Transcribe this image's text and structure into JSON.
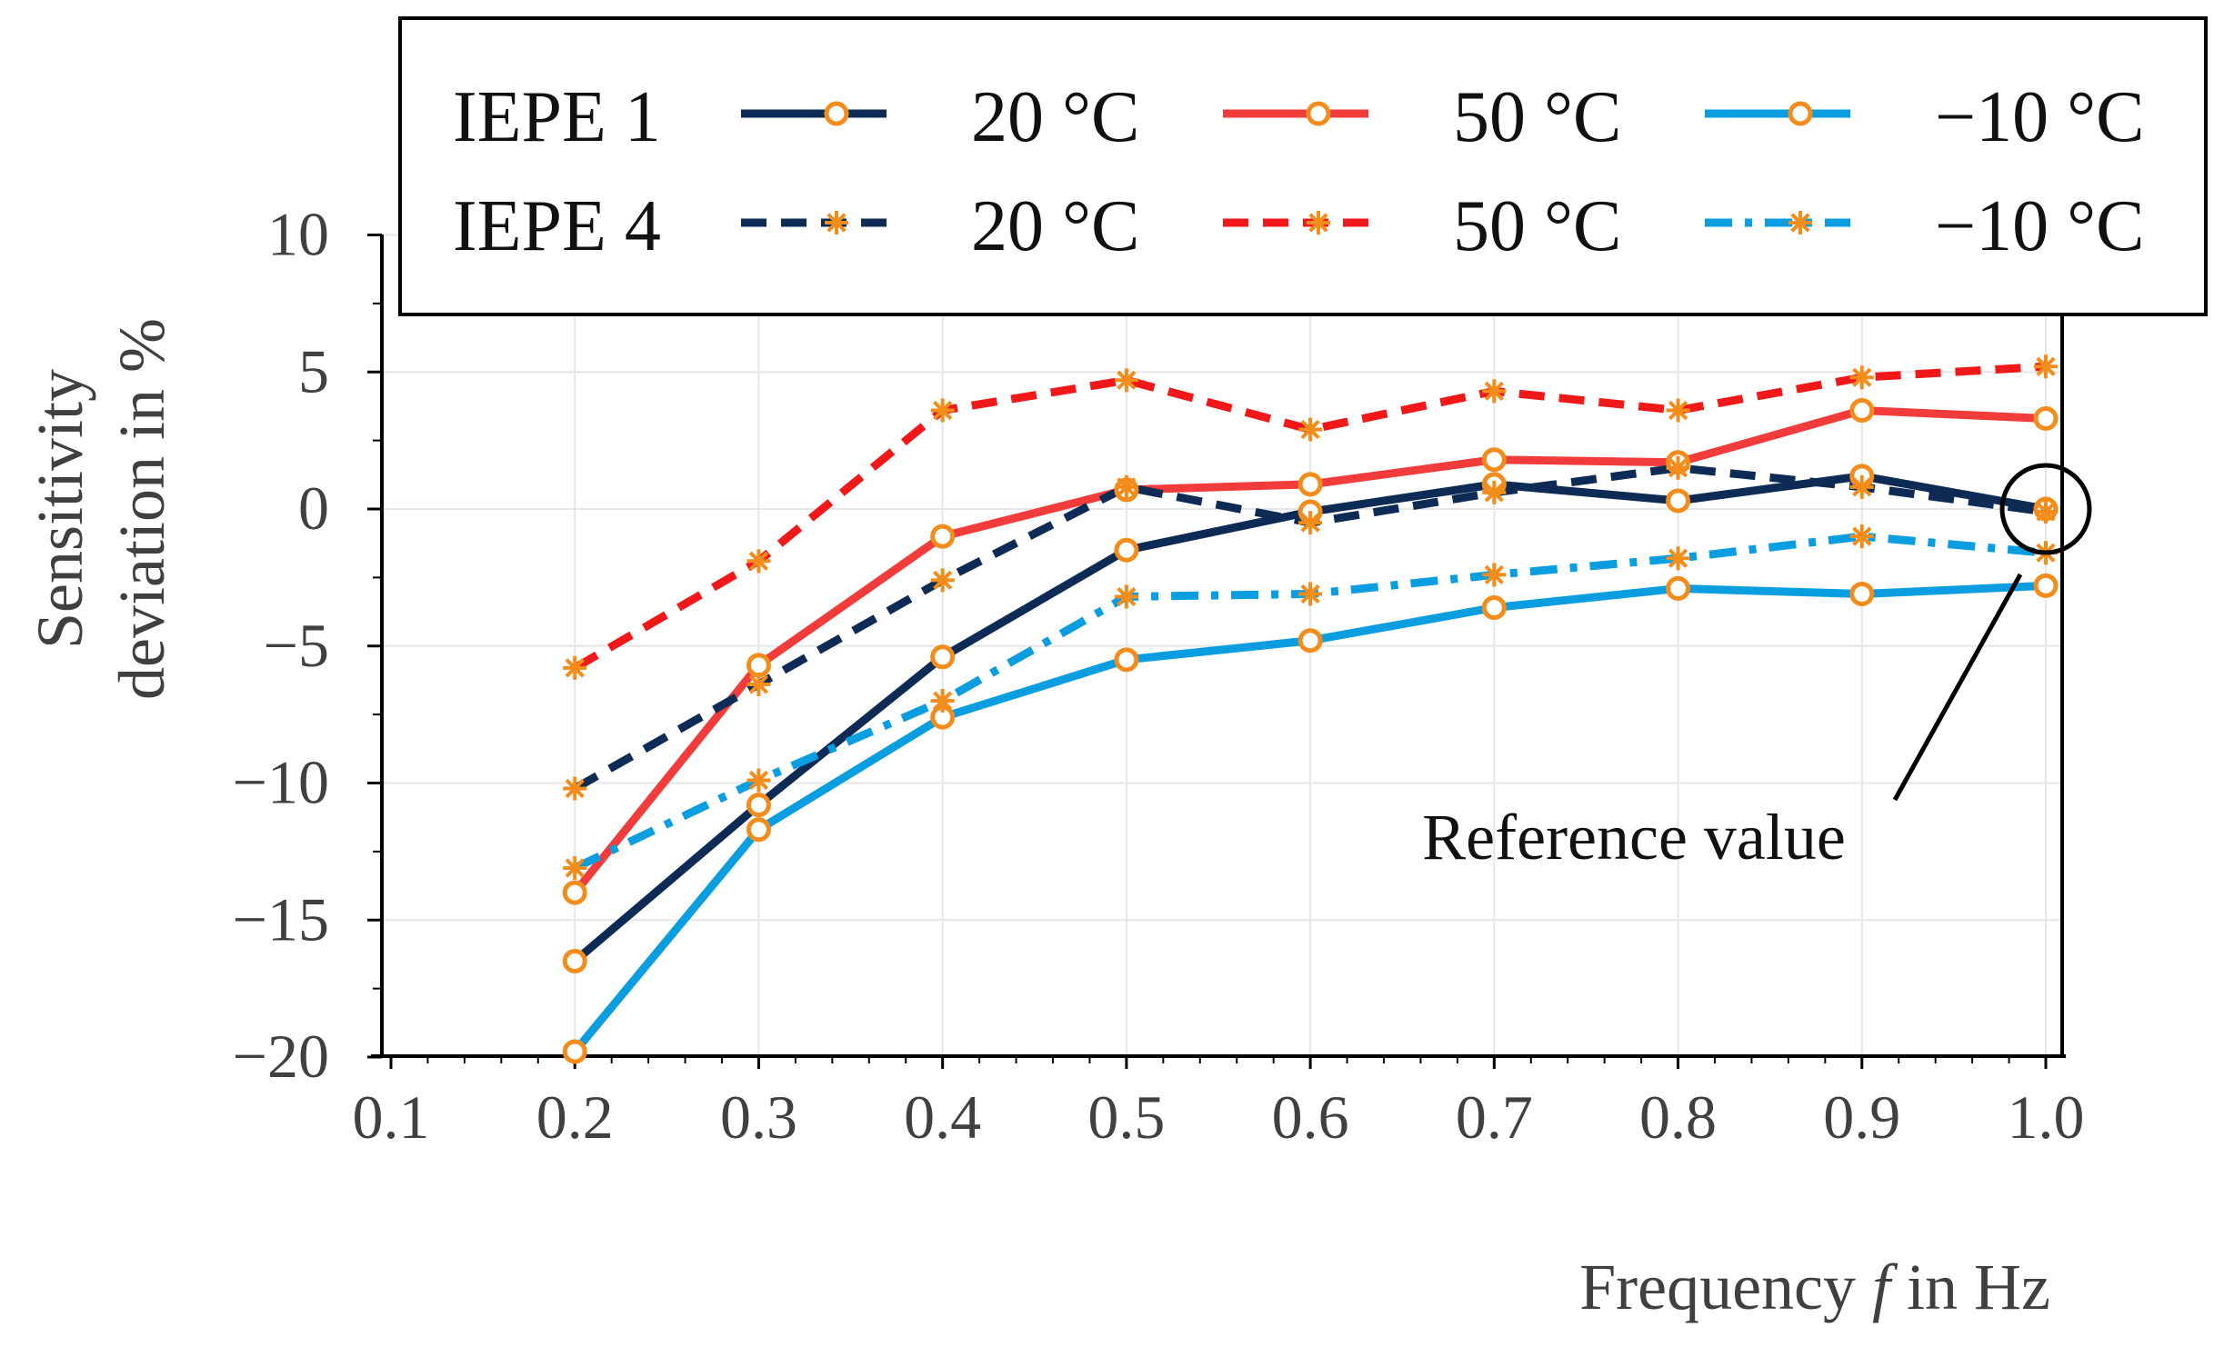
{
  "chart_data": {
    "type": "line",
    "xlabel_prefix": "Frequency",
    "xlabel_var": "f",
    "xlabel_suffix": "in Hz",
    "ylabel_line1": "Sensitivity",
    "ylabel_line2": "deviation in %",
    "xlim": [
      0.1,
      1.0
    ],
    "ylim": [
      -20,
      10
    ],
    "grid": true,
    "legend_position": "top-right",
    "x_tick_labels": [
      "0.1",
      "0.2",
      "0.3",
      "0.4",
      "0.5",
      "0.6",
      "0.7",
      "0.8",
      "0.9",
      "1.0"
    ],
    "y_tick_labels": [
      "10",
      "5",
      "0",
      "−5",
      "−10",
      "−15",
      "−20"
    ],
    "legend_rows": [
      "IEPE 1",
      "IEPE 4"
    ],
    "annotation": "Reference value",
    "x": [
      0.2,
      0.3,
      0.4,
      0.5,
      0.6,
      0.7,
      0.8,
      0.9,
      1.0
    ],
    "series": [
      {
        "name": "IEPE 1 20 °C",
        "sensor": "IEPE 1",
        "label": "20 °C",
        "color": "#0d2b55",
        "dash": "solid",
        "marker": "circle",
        "values": [
          -16.5,
          -10.8,
          -5.4,
          -1.5,
          -0.1,
          0.9,
          0.3,
          1.2,
          0.0
        ]
      },
      {
        "name": "IEPE 1 50 °C",
        "sensor": "IEPE 1",
        "label": "50 °C",
        "color": "#f23c3c",
        "dash": "solid",
        "marker": "circle",
        "values": [
          -14.0,
          -5.7,
          -1.0,
          0.7,
          0.9,
          1.8,
          1.7,
          3.6,
          3.3
        ]
      },
      {
        "name": "IEPE 1 −10 °C",
        "sensor": "IEPE 1",
        "label": "−10 °C",
        "color": "#0a9ee0",
        "dash": "solid",
        "marker": "circle",
        "values": [
          -19.8,
          -11.7,
          -7.6,
          -5.5,
          -4.8,
          -3.6,
          -2.9,
          -3.1,
          -2.8
        ]
      },
      {
        "name": "IEPE 4 20 °C",
        "sensor": "IEPE 4",
        "label": "20 °C",
        "color": "#0d2b55",
        "dash": "dash",
        "marker": "star",
        "values": [
          -10.2,
          -6.4,
          -2.6,
          0.8,
          -0.5,
          0.6,
          1.5,
          0.8,
          -0.1
        ]
      },
      {
        "name": "IEPE 4 50 °C",
        "sensor": "IEPE 4",
        "label": "50 °C",
        "color": "#f01818",
        "dash": "dash",
        "marker": "star",
        "values": [
          -5.8,
          -1.9,
          3.6,
          4.7,
          2.9,
          4.3,
          3.6,
          4.8,
          5.2
        ]
      },
      {
        "name": "IEPE 4 −10 °C",
        "sensor": "IEPE 4",
        "label": "−10 °C",
        "color": "#0a9ee0",
        "dash": "dashdot",
        "marker": "star",
        "values": [
          -13.1,
          -9.9,
          -7.0,
          -3.2,
          -3.1,
          -2.4,
          -1.8,
          -1.0,
          -1.6
        ]
      }
    ],
    "marker_color": "#f28c1a"
  }
}
